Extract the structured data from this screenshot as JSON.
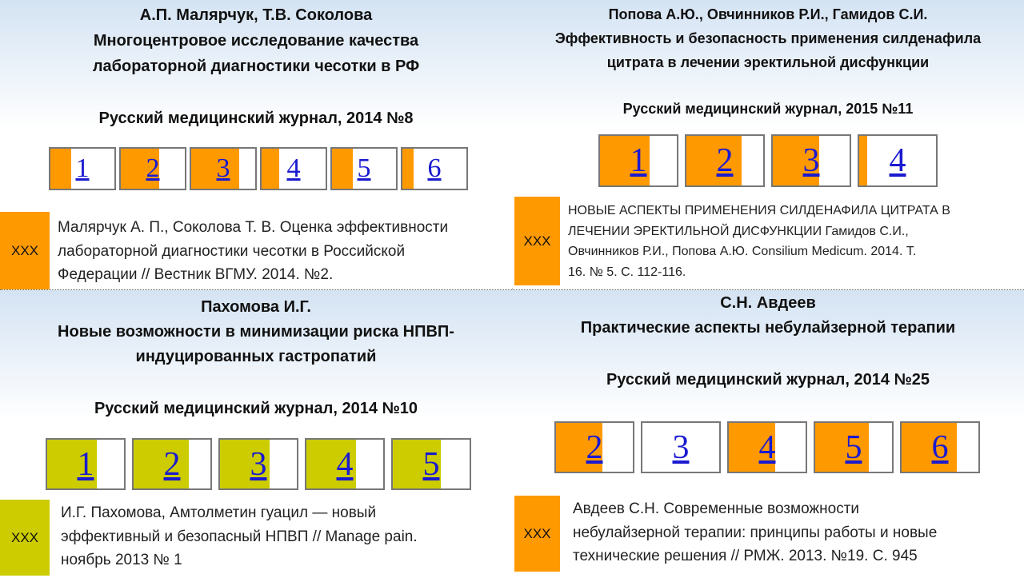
{
  "quadrants": [
    {
      "author": "А.П. Малярчук, Т.В. Соколова",
      "title": [
        "Многоцентровое исследование качества",
        "лабораторной диагностики чесотки в РФ"
      ],
      "journal": "Русский медицинский журнал, 2014 №8",
      "parts": [
        "1",
        "2",
        "3",
        "4",
        "5",
        "6"
      ],
      "note": "XXX",
      "citation": [
        "Малярчук А. П., Соколова Т. В. Оценка эффективности",
        "лабораторной диагностики чесотки в Российской",
        "Федерации // Вестник ВГМУ. 2014. №2."
      ]
    },
    {
      "author": "Попова А.Ю., Овчинников Р.И., Гамидов С.И.",
      "title": [
        "Эффективность и безопасность применения силденафила",
        "цитрата в лечении эректильной дисфункции"
      ],
      "journal": "Русский медицинский журнал, 2015 №11",
      "parts": [
        "1",
        "2",
        "3",
        "4"
      ],
      "note": "XXX",
      "citation": [
        "НОВЫЕ АСПЕКТЫ ПРИМЕНЕНИЯ СИЛДЕНАФИЛА ЦИТРАТА В",
        "ЛЕЧЕНИИ ЭРЕКТИЛЬНОЙ ДИСФУНКЦИИ Гамидов С.И.,",
        "Овчинников Р.И., Попова А.Ю. Consilium Medicum. 2014. Т.",
        "16. № 5. С. 112-116."
      ]
    },
    {
      "author": "Пахомова И.Г.",
      "title": [
        "Новые возможности в минимизации риска НПВП-",
        "индуцированных гастропатий"
      ],
      "journal": "Русский медицинский журнал, 2014 №10",
      "parts": [
        "1",
        "2",
        "3",
        "4",
        "5"
      ],
      "note": "XXX",
      "citation": [
        "И.Г. Пахомова, Амтолметин гуацил — новый",
        "эффективный и безопасный НПВП // Manage pain.",
        "ноябрь 2013 № 1"
      ]
    },
    {
      "author": "С.Н. Авдеев",
      "title": [
        "Практические аспекты небулайзерной терапии"
      ],
      "journal": "Русский медицинский журнал, 2014 №25",
      "parts": [
        "2",
        "3",
        "4",
        "5",
        "6"
      ],
      "note": "XXX",
      "citation": [
        "Авдеев С.Н. Современные возможности",
        "небулайзерной терапии: принципы работы и новые",
        "технические решения // РМЖ. 2013. №19. С. 945"
      ]
    }
  ]
}
